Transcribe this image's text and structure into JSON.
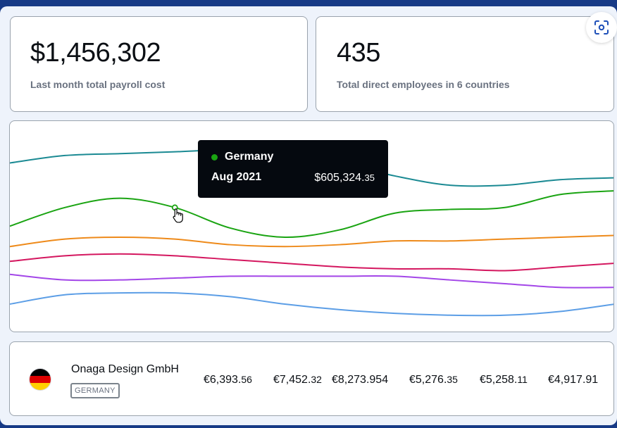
{
  "stats": [
    {
      "value": "$1,456,302",
      "label": "Last month total payroll cost"
    },
    {
      "value": "435",
      "label": "Total direct employees in 6 countries"
    }
  ],
  "chart_data": {
    "type": "line",
    "series": [
      {
        "color": "#1b8a93",
        "values": [
          82,
          86,
          87,
          88,
          89,
          87,
          82,
          75,
          70,
          70,
          73,
          74
        ]
      },
      {
        "color": "#1aa412",
        "values": [
          48,
          58,
          63,
          58,
          47,
          42,
          46,
          55,
          57,
          58,
          65,
          67
        ]
      },
      {
        "color": "#ee8a1a",
        "values": [
          37,
          41,
          42,
          41,
          38,
          37,
          38,
          40,
          40,
          41,
          42,
          43
        ]
      },
      {
        "color": "#d4175f",
        "values": [
          29,
          32,
          33,
          32,
          30,
          28,
          26,
          25,
          25,
          24,
          26,
          28
        ]
      },
      {
        "color": "#a346e8",
        "values": [
          22,
          19,
          19,
          20,
          21,
          21,
          21,
          21,
          19,
          17,
          15,
          15
        ]
      },
      {
        "color": "#5c9ee6",
        "values": [
          6,
          11,
          12,
          12,
          10,
          6,
          3,
          1,
          0,
          0,
          2,
          6
        ]
      }
    ],
    "ylim": [
      -5,
      100
    ],
    "highlight": {
      "series_index": 1,
      "point_index": 3
    }
  },
  "tooltip": {
    "country": "Germany",
    "date": "Aug 2021",
    "value_main": "$605,324.",
    "value_cents": "35",
    "dot_color": "#1aa412"
  },
  "row": {
    "company": "Onaga Design GmbH",
    "country": "GERMANY",
    "flag_colors": [
      "#000000",
      "#dd0000",
      "#ffce00"
    ],
    "amounts": [
      {
        "main": "€6,393.",
        "cents": "56"
      },
      {
        "main": "€7,452.",
        "cents": "32"
      },
      {
        "main": "€8,273.",
        "cents": "954"
      },
      {
        "main": "€5,276.",
        "cents": "35"
      },
      {
        "main": "€5,258.",
        "cents": "11"
      },
      {
        "main": "€4,917.",
        "cents": "91"
      }
    ]
  },
  "icons": {
    "scan": "scan-icon",
    "cursor": "hand-pointer-icon"
  }
}
